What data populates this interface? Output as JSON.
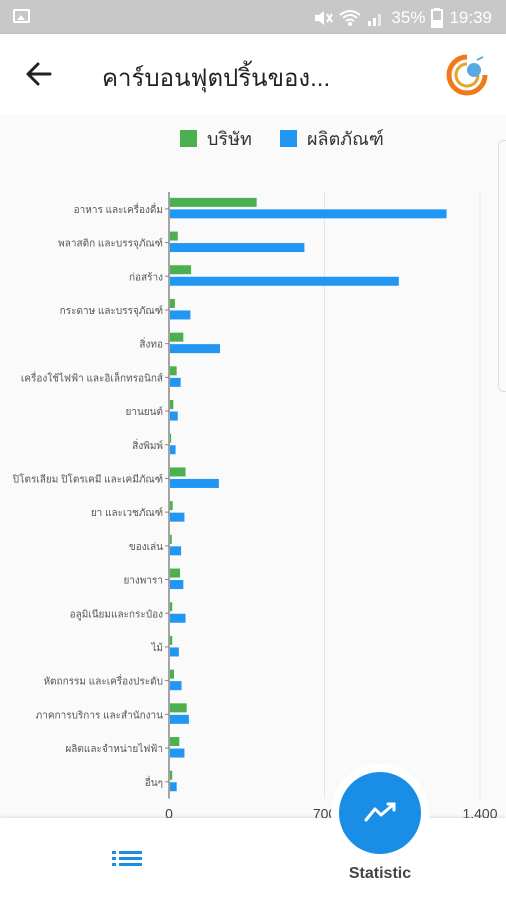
{
  "status_bar": {
    "battery": "35%",
    "time": "19:39",
    "icons": [
      "image-icon",
      "mute-icon",
      "wifi-icon",
      "signal-icon",
      "battery-icon"
    ]
  },
  "app_bar": {
    "title": "คาร์บอนฟุตปริ้นของ...",
    "back_icon": "arrow-left-icon",
    "logo_icon": "app-logo-icon"
  },
  "bottom_nav": {
    "list_icon": "list-icon",
    "fab_icon": "trending-chart-icon",
    "statistic_label": "Statistic"
  },
  "colors": {
    "company": "#4caf50",
    "product": "#2196f3",
    "accent": "#1a8ee6"
  },
  "chart_data": {
    "type": "bar",
    "orientation": "horizontal",
    "categories": [
      "อาหาร และเครื่องดื่ม",
      "พลาสติก และบรรจุภัณฑ์",
      "ก่อสร้าง",
      "กระดาษ และบรรจุภัณฑ์",
      "สิ่งทอ",
      "เครื่องใช้ไฟฟ้า และอิเล็กทรอนิกส์",
      "ยานยนต์",
      "สิ่งพิมพ์",
      "ปิโตรเลียม ปิโตรเคมี และเคมีภัณฑ์",
      "ยา และเวชภัณฑ์",
      "ของเล่น",
      "ยางพารา",
      "อลูมิเนียมและกระป๋อง",
      "ไม้",
      "หัตถกรรม และเครื่องประดับ",
      "ภาคการบริการ และสำนักงาน",
      "ผลิตและจำหน่ายไฟฟ้า",
      "อื่นๆ"
    ],
    "series": [
      {
        "name": "บริษัท",
        "color": "#4caf50",
        "values": [
          390,
          35,
          95,
          22,
          60,
          30,
          15,
          5,
          70,
          12,
          8,
          45,
          10,
          10,
          18,
          75,
          42,
          10
        ]
      },
      {
        "name": "ผลิตภัณฑ์",
        "color": "#2196f3",
        "values": [
          1245,
          605,
          1030,
          92,
          225,
          48,
          35,
          25,
          220,
          65,
          50,
          60,
          70,
          40,
          52,
          85,
          65,
          30
        ]
      }
    ],
    "xlim": [
      0,
      1400
    ],
    "x_ticks": [
      "0",
      "700",
      "1,400"
    ],
    "legend_position": "top",
    "grid": true
  }
}
